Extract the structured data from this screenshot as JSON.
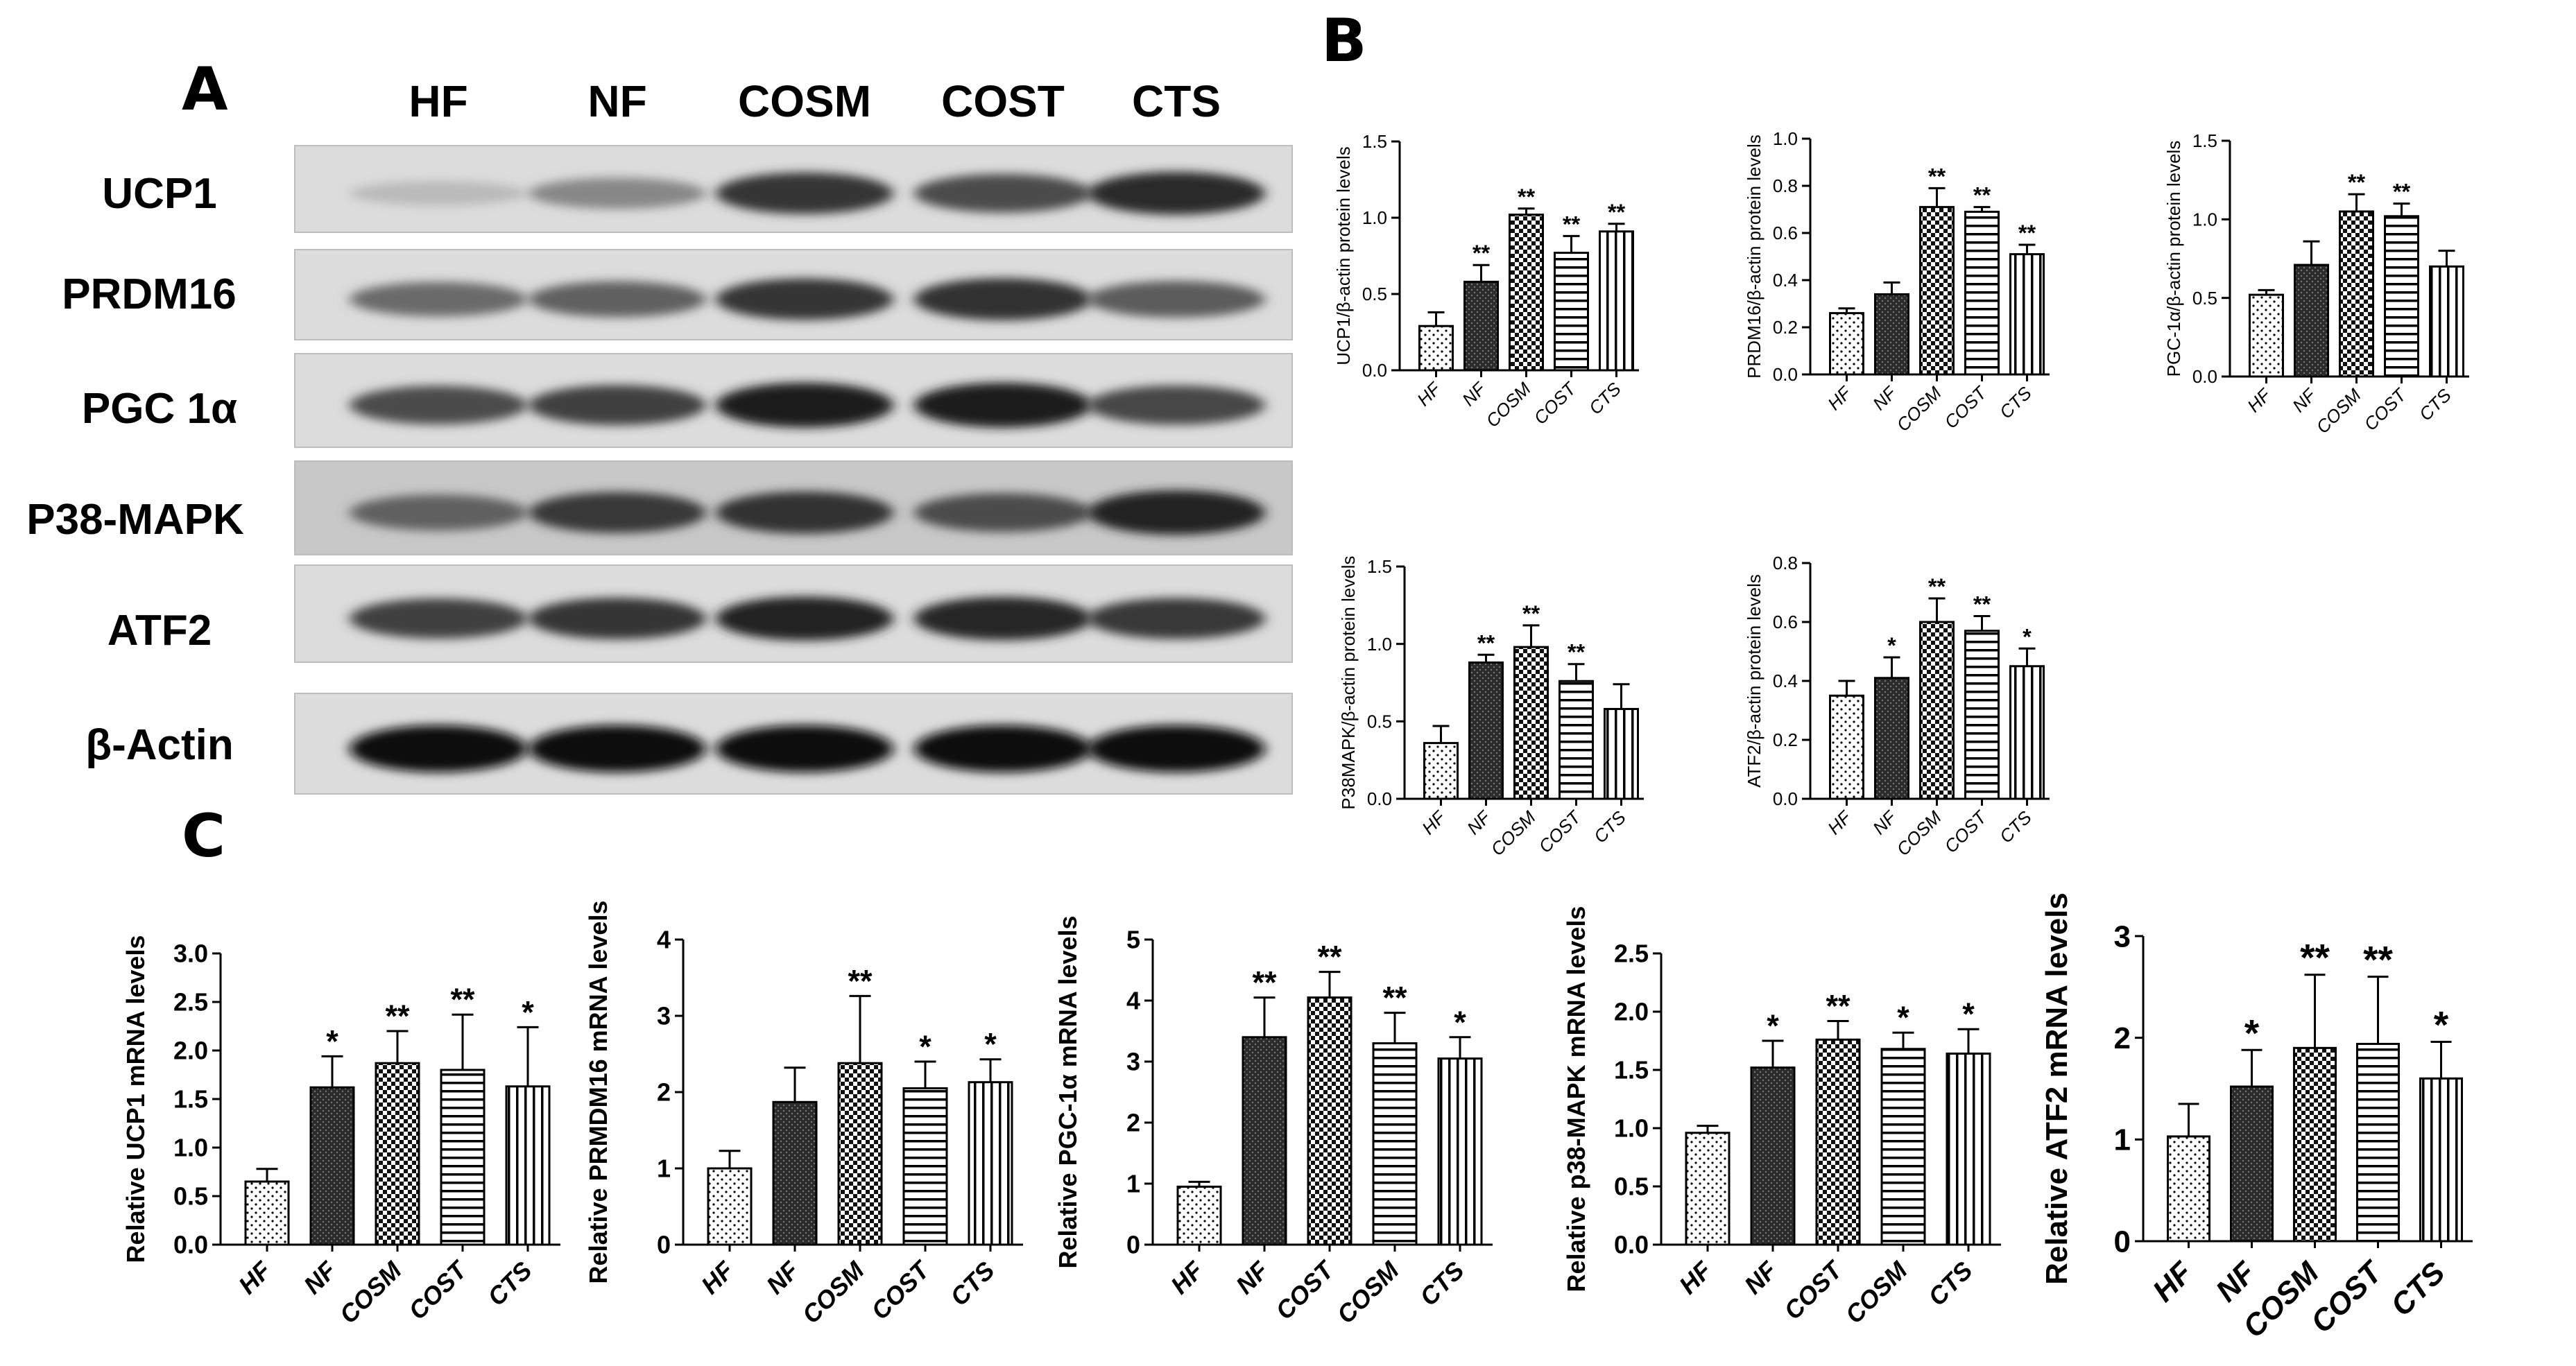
{
  "panel_labels": {
    "A": "A",
    "B": "B",
    "C": "C"
  },
  "western_blot": {
    "lanes": [
      "HF",
      "NF",
      "COSM",
      "COST",
      "CTS"
    ],
    "rows": [
      {
        "label": "UCP1",
        "band_intensity": [
          0.18,
          0.42,
          0.8,
          0.7,
          0.85
        ]
      },
      {
        "label": "PRDM16",
        "band_intensity": [
          0.55,
          0.6,
          0.8,
          0.82,
          0.62
        ]
      },
      {
        "label": "PGC 1α",
        "band_intensity": [
          0.7,
          0.75,
          0.92,
          0.92,
          0.72
        ]
      },
      {
        "label": "P38-MAPK",
        "band_intensity": [
          0.6,
          0.78,
          0.82,
          0.7,
          0.9
        ]
      },
      {
        "label": "ATF2",
        "band_intensity": [
          0.75,
          0.8,
          0.88,
          0.86,
          0.78
        ]
      },
      {
        "label": "β-Actin",
        "band_intensity": [
          1.0,
          1.0,
          1.0,
          1.0,
          1.0
        ]
      }
    ]
  },
  "chart_data": [
    {
      "type": "bar",
      "panel": "B",
      "ylabel": "UCP1/β-actin protein levels",
      "categories": [
        "HF",
        "NF",
        "COSM",
        "COST",
        "CTS"
      ],
      "values": [
        0.29,
        0.58,
        1.02,
        0.77,
        0.91
      ],
      "errors": [
        0.09,
        0.11,
        0.04,
        0.11,
        0.05
      ],
      "significance": [
        "",
        "**",
        "**",
        "**",
        "**"
      ],
      "ylim": [
        0,
        1.5
      ],
      "yticks": [
        "0.0",
        "0.5",
        "1.0",
        "1.5"
      ]
    },
    {
      "type": "bar",
      "panel": "B",
      "ylabel": "PRDM16/β-actin protein levels",
      "categories": [
        "HF",
        "NF",
        "COSM",
        "COST",
        "CTS"
      ],
      "values": [
        0.26,
        0.34,
        0.71,
        0.69,
        0.51
      ],
      "errors": [
        0.02,
        0.05,
        0.08,
        0.02,
        0.04
      ],
      "significance": [
        "",
        "",
        "**",
        "**",
        "**"
      ],
      "ylim": [
        0,
        1.0
      ],
      "yticks": [
        "0.0",
        "0.2",
        "0.4",
        "0.6",
        "0.8",
        "1.0"
      ]
    },
    {
      "type": "bar",
      "panel": "B",
      "ylabel": "PGC-1α/β-actin protein levels",
      "categories": [
        "HF",
        "NF",
        "COSM",
        "COST",
        "CTS"
      ],
      "values": [
        0.52,
        0.71,
        1.05,
        1.02,
        0.7
      ],
      "errors": [
        0.03,
        0.15,
        0.11,
        0.08,
        0.1
      ],
      "significance": [
        "",
        "",
        "**",
        "**",
        ""
      ],
      "ylim": [
        0,
        1.5
      ],
      "yticks": [
        "0.0",
        "0.5",
        "1.0",
        "1.5"
      ]
    },
    {
      "type": "bar",
      "panel": "B",
      "ylabel": "P38MAPK/β-actin protein levels",
      "categories": [
        "HF",
        "NF",
        "COSM",
        "COST",
        "CTS"
      ],
      "values": [
        0.36,
        0.88,
        0.98,
        0.76,
        0.58
      ],
      "errors": [
        0.11,
        0.05,
        0.14,
        0.11,
        0.16
      ],
      "significance": [
        "",
        "**",
        "**",
        "**",
        ""
      ],
      "ylim": [
        0,
        1.5
      ],
      "yticks": [
        "0.0",
        "0.5",
        "1.0",
        "1.5"
      ]
    },
    {
      "type": "bar",
      "panel": "B",
      "ylabel": "ATF2/β-actin protein levels",
      "categories": [
        "HF",
        "NF",
        "COSM",
        "COST",
        "CTS"
      ],
      "values": [
        0.35,
        0.41,
        0.6,
        0.57,
        0.45
      ],
      "errors": [
        0.05,
        0.07,
        0.08,
        0.05,
        0.06
      ],
      "significance": [
        "",
        "*",
        "**",
        "**",
        "*"
      ],
      "ylim": [
        0,
        0.8
      ],
      "yticks": [
        "0.0",
        "0.2",
        "0.4",
        "0.6",
        "0.8"
      ]
    },
    {
      "type": "bar",
      "panel": "C",
      "ylabel": "Relative UCP1 mRNA levels",
      "categories": [
        "HF",
        "NF",
        "COSM",
        "COST",
        "CTS"
      ],
      "values": [
        0.65,
        1.62,
        1.87,
        1.8,
        1.63
      ],
      "errors": [
        0.13,
        0.32,
        0.33,
        0.57,
        0.61
      ],
      "significance": [
        "",
        "*",
        "**",
        "**",
        "*"
      ],
      "ylim": [
        0,
        3.0
      ],
      "yticks": [
        "0.0",
        "0.5",
        "1.0",
        "1.5",
        "2.0",
        "2.5",
        "3.0"
      ]
    },
    {
      "type": "bar",
      "panel": "C",
      "ylabel": "Relative PRMDM16 mRNA levels",
      "categories": [
        "HF",
        "NF",
        "COSM",
        "COST",
        "CTS"
      ],
      "values": [
        1.0,
        1.87,
        2.38,
        2.05,
        2.13
      ],
      "errors": [
        0.23,
        0.45,
        0.88,
        0.35,
        0.3
      ],
      "significance": [
        "",
        "",
        "**",
        "*",
        "*"
      ],
      "ylim": [
        0,
        4
      ],
      "yticks": [
        "0",
        "1",
        "2",
        "3",
        "4"
      ]
    },
    {
      "type": "bar",
      "panel": "C",
      "ylabel": "Relative PGC-1α mRNA levels",
      "categories": [
        "HF",
        "NF",
        "COST",
        "COSM",
        "CTS"
      ],
      "values": [
        0.95,
        3.4,
        4.05,
        3.3,
        3.05
      ],
      "errors": [
        0.08,
        0.65,
        0.42,
        0.5,
        0.35
      ],
      "significance": [
        "",
        "**",
        "**",
        "**",
        "*"
      ],
      "ylim": [
        0,
        5
      ],
      "yticks": [
        "0",
        "1",
        "2",
        "3",
        "4",
        "5"
      ]
    },
    {
      "type": "bar",
      "panel": "C",
      "ylabel": "Relative p38-MAPK mRNA levels",
      "categories": [
        "HF",
        "NF",
        "COST",
        "COSM",
        "CTS"
      ],
      "values": [
        0.96,
        1.52,
        1.76,
        1.68,
        1.64
      ],
      "errors": [
        0.06,
        0.23,
        0.16,
        0.14,
        0.21
      ],
      "significance": [
        "",
        "*",
        "**",
        "*",
        "*"
      ],
      "ylim": [
        0,
        2.5
      ],
      "yticks": [
        "0.0",
        "0.5",
        "1.0",
        "1.5",
        "2.0",
        "2.5"
      ]
    },
    {
      "type": "bar",
      "panel": "C",
      "ylabel": "Relative ATF2 mRNA levels",
      "categories": [
        "HF",
        "NF",
        "COSM",
        "COST",
        "CTS"
      ],
      "values": [
        1.03,
        1.52,
        1.9,
        1.94,
        1.6
      ],
      "errors": [
        0.32,
        0.36,
        0.72,
        0.66,
        0.36
      ],
      "significance": [
        "",
        "*",
        "**",
        "**",
        "*"
      ],
      "ylim": [
        0,
        3
      ],
      "yticks": [
        "0",
        "1",
        "2",
        "3"
      ]
    }
  ]
}
